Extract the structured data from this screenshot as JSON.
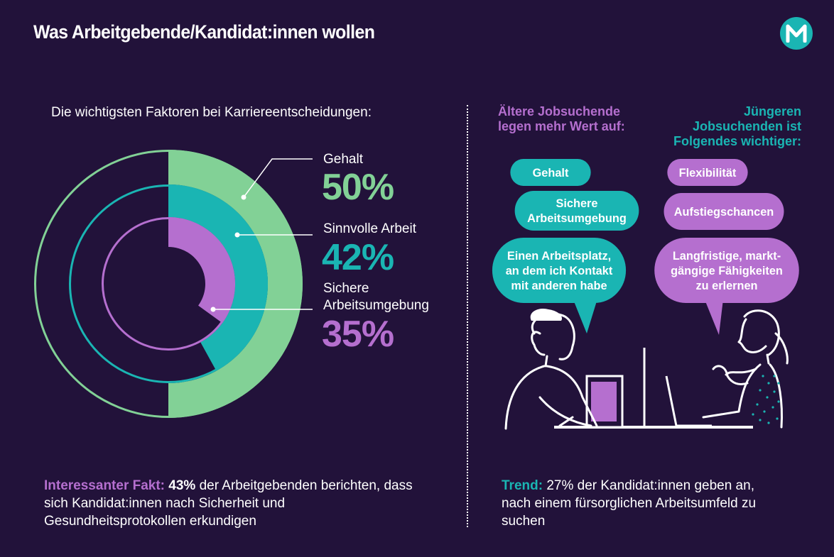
{
  "title": "Was Arbeitgebende/Kandidat:innen wollen",
  "logo_letter": "M",
  "colors": {
    "background": "#22123a",
    "green": "#82d196",
    "teal": "#1ab5b3",
    "purple": "#b56fcf",
    "text": "#ffffff"
  },
  "chart_data": {
    "type": "radial-bar",
    "title": "Die wichtigsten Faktoren bei Karriereentscheidungen:",
    "unit": "%",
    "max": 100,
    "series": [
      {
        "name": "Gehalt",
        "value": 50,
        "display": "50%",
        "color": "#82d196"
      },
      {
        "name": "Sinnvolle Arbeit",
        "value": 42,
        "display": "42%",
        "color": "#1ab5b3"
      },
      {
        "name": "Sichere\nArbeitsumgebung",
        "value": 35,
        "display": "35%",
        "color": "#b56fcf"
      }
    ]
  },
  "comparison": {
    "older": {
      "title": "Ältere Jobsuchende\nlegen mehr Wert auf:",
      "items": [
        "Gehalt",
        "Sichere\nArbeitsumgebung",
        "Einen Arbeitsplatz,\nan dem ich Kontakt\nmit anderen habe"
      ]
    },
    "younger": {
      "title": "Jüngeren\nJobsuchenden ist\nFolgendes wichtiger:",
      "items": [
        "Flexibilität",
        "Aufstiegschancen",
        "Langfristige, markt-\ngängige Fähigkeiten\nzu erlernen"
      ]
    }
  },
  "fact": {
    "label": "Interessanter Fakt:",
    "highlight": "43%",
    "text": " der Arbeitgebenden berichten, dass sich Kandidat:innen nach Sicherheit und Gesundheitsprotokollen erkundigen"
  },
  "trend": {
    "label": "Trend:",
    "text": " 27% der Kandidat:innen geben an, nach einem fürsorglichen Arbeitsumfeld zu suchen"
  }
}
